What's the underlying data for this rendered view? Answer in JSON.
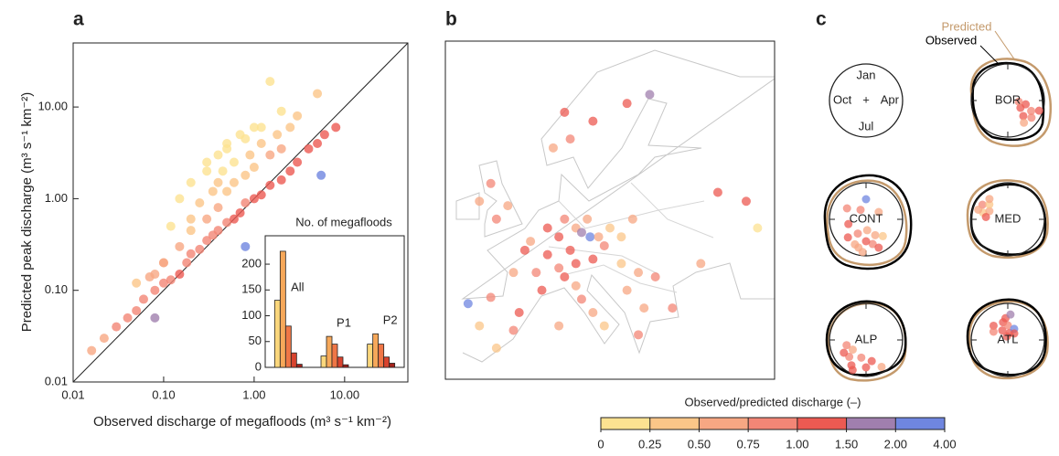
{
  "panel_labels": [
    "a",
    "b",
    "c"
  ],
  "chart_data": [
    {
      "type": "scatter",
      "x_label": "Observed discharge of megafloods (m³ s⁻¹ km⁻²)",
      "y_label": "Predicted peak discharge (m³ s⁻¹ km⁻²)",
      "log_x": true,
      "log_y": true,
      "diagonal": true,
      "xlim": [
        0.01,
        50
      ],
      "ylim": [
        0.01,
        50
      ],
      "xticks": [
        {
          "value": 0.01,
          "label": "0.01"
        },
        {
          "value": 0.1,
          "label": "0.10"
        },
        {
          "value": 1,
          "label": "1.00"
        },
        {
          "value": 10,
          "label": "10.00"
        }
      ],
      "yticks": [
        {
          "value": 0.01,
          "label": "0.01"
        },
        {
          "value": 0.1,
          "label": "0.10"
        },
        {
          "value": 1,
          "label": "1.00"
        },
        {
          "value": 10,
          "label": "10.00"
        }
      ],
      "x": [
        0.016,
        0.022,
        0.03,
        0.04,
        0.05,
        0.06,
        0.08,
        0.1,
        0.12,
        0.15,
        0.18,
        0.2,
        0.25,
        0.3,
        0.35,
        0.4,
        0.5,
        0.6,
        0.7,
        0.8,
        1.0,
        1.2,
        1.5,
        2.0,
        2.5,
        3.0,
        4.0,
        5.0,
        6.0,
        8.0,
        0.08,
        0.1,
        0.15,
        0.2,
        0.3,
        0.4,
        0.5,
        0.6,
        0.8,
        1.0,
        1.5,
        2.0,
        0.15,
        0.2,
        0.3,
        0.4,
        0.5,
        0.7,
        1.0,
        1.5,
        2.0,
        3.0,
        0.05,
        0.07,
        0.1,
        0.12,
        0.25,
        0.35,
        0.45,
        0.6,
        0.9,
        1.2,
        1.8,
        2.5,
        0.3,
        0.5,
        0.8,
        1.2,
        5.0,
        5.5,
        0.8,
        0.08,
        0.4,
        0.2
      ],
      "y": [
        0.022,
        0.03,
        0.04,
        0.05,
        0.06,
        0.08,
        0.1,
        0.12,
        0.13,
        0.15,
        0.2,
        0.25,
        0.28,
        0.35,
        0.4,
        0.45,
        0.55,
        0.6,
        0.7,
        0.9,
        1.0,
        1.1,
        1.4,
        1.6,
        2.0,
        2.5,
        3.5,
        4.0,
        5.0,
        6.0,
        0.15,
        0.2,
        0.3,
        0.45,
        0.6,
        0.8,
        1.2,
        1.5,
        1.8,
        2.2,
        3.0,
        3.5,
        1.0,
        1.5,
        2.5,
        3.0,
        4.0,
        5.0,
        6.0,
        19.0,
        9.0,
        8.0,
        0.12,
        0.14,
        0.2,
        0.5,
        0.9,
        1.2,
        2.0,
        2.5,
        3.0,
        4.0,
        5.0,
        6.0,
        2.0,
        3.5,
        4.5,
        6.0,
        14.0,
        1.8,
        0.3,
        0.05,
        1.5,
        0.6
      ]
    },
    {
      "type": "bar",
      "title": "No. of megafloods",
      "categories": [
        "All",
        "P1",
        "P2"
      ],
      "series": [
        {
          "color": "#fbd77c",
          "values": [
            130,
            22,
            45
          ]
        },
        {
          "color": "#f6a85a",
          "values": [
            225,
            60,
            65
          ]
        },
        {
          "color": "#ef7646",
          "values": [
            80,
            45,
            45
          ]
        },
        {
          "color": "#d8432e",
          "values": [
            28,
            20,
            20
          ]
        },
        {
          "color": "#a3231c",
          "values": [
            6,
            5,
            8
          ]
        }
      ],
      "ylim": [
        0,
        255
      ],
      "yticks": [
        0,
        50,
        100,
        150,
        200
      ]
    },
    {
      "type": "map",
      "xlim": [
        -12,
        46
      ],
      "ylim": [
        34,
        72
      ],
      "lon": [
        -8,
        -4,
        -6,
        -3,
        0,
        1,
        2,
        4,
        5,
        0,
        3,
        6,
        -3,
        -1,
        -4,
        -6,
        6,
        8,
        9,
        11,
        13,
        10,
        12,
        13.5,
        15,
        17,
        19,
        21,
        16,
        11,
        14,
        8,
        9,
        11,
        12,
        14,
        16,
        8,
        19,
        22,
        25,
        20,
        23,
        22,
        10,
        14,
        20,
        24,
        7,
        9,
        36,
        41,
        43,
        28,
        33
      ],
      "lat": [
        42.5,
        43.2,
        40,
        37.5,
        39.5,
        41.5,
        48.5,
        46,
        44,
        46,
        49.5,
        48,
        52,
        53.5,
        56,
        54,
        51,
        50,
        52,
        51,
        52,
        48.5,
        50.5,
        50,
        50,
        51,
        50,
        52,
        49,
        47,
        47.5,
        46.5,
        45.5,
        44.5,
        43,
        41.5,
        40,
        40,
        47,
        46,
        45.5,
        44,
        42,
        39,
        61,
        63,
        65,
        66,
        60,
        64,
        55,
        54,
        51,
        42,
        47
      ],
      "ratio": [
        2.5,
        0.8,
        0.4,
        0.3,
        0.9,
        1.1,
        1.2,
        0.9,
        1.1,
        0.7,
        0.6,
        1.0,
        0.8,
        0.6,
        0.9,
        0.7,
        1.2,
        1.1,
        0.9,
        0.5,
        0.6,
        1.3,
        1.6,
        2.2,
        0.7,
        0.4,
        0.3,
        0.5,
        0.8,
        1.2,
        1.0,
        0.9,
        1.1,
        0.6,
        0.8,
        0.7,
        0.3,
        0.5,
        0.4,
        0.6,
        0.9,
        0.5,
        0.7,
        0.8,
        0.9,
        1.0,
        1.2,
        1.7,
        0.6,
        1.1,
        1.3,
        1.1,
        0.2,
        0.8,
        0.7
      ]
    },
    {
      "type": "polar",
      "series": [
        {
          "name": "Predicted",
          "color": "#c49a6c"
        },
        {
          "name": "Observed",
          "color": "#000000"
        }
      ],
      "month_labels": [
        "Jan",
        "Apr",
        "Jul",
        "Oct"
      ],
      "center_label": "+",
      "regions": [
        {
          "name": "BOR",
          "month": [
            4.4,
            4.8,
            5.0,
            5.2,
            5.5,
            4.6,
            5.8,
            4.2
          ],
          "r": [
            0.5,
            0.7,
            0.4,
            0.8,
            0.6,
            0.9,
            0.75,
            0.3
          ],
          "ratio": [
            1.1,
            0.9,
            1.2,
            0.8,
            1.0,
            1.3,
            0.7,
            0.9
          ]
        },
        {
          "name": "CONT",
          "month": [
            1.0,
            6.0,
            6.5,
            7.0,
            7.5,
            8.0,
            5.5,
            8.5,
            6.8,
            7.2,
            9.5,
            3.0,
            11.0,
            6.2,
            7.8,
            12.0
          ],
          "r": [
            0.55,
            0.5,
            0.7,
            0.6,
            0.8,
            0.45,
            0.65,
            0.7,
            0.3,
            0.9,
            0.5,
            0.4,
            0.6,
            0.85,
            0.75,
            0.3
          ],
          "ratio": [
            2.5,
            0.5,
            0.8,
            1.1,
            0.6,
            0.9,
            0.4,
            1.2,
            0.7,
            0.5,
            1.0,
            0.6,
            0.8,
            1.3,
            0.7,
            0.9
          ]
        },
        {
          "name": "MED",
          "month": [
            10.5,
            10.8,
            11.0,
            11.3,
            10.2,
            11.6,
            10.6
          ],
          "r": [
            0.7,
            0.55,
            0.8,
            0.65,
            0.6,
            0.75,
            0.85
          ],
          "ratio": [
            0.3,
            0.6,
            0.8,
            0.4,
            1.0,
            0.5,
            0.7
          ]
        },
        {
          "name": "ALP",
          "month": [
            6.5,
            7.0,
            7.5,
            8.0,
            8.5,
            9.0,
            6.0,
            7.8,
            8.8,
            9.5
          ],
          "r": [
            0.6,
            0.75,
            0.5,
            0.8,
            0.65,
            0.7,
            0.85,
            0.9,
            0.45,
            0.55
          ],
          "ratio": [
            1.1,
            1.2,
            0.9,
            1.3,
            0.8,
            1.0,
            0.7,
            1.1,
            0.6,
            0.9
          ]
        },
        {
          "name": "ATL",
          "month": [
            12.0,
            12.5,
            1.0,
            1.5,
            11.5,
            2.0,
            12.8,
            0.5,
            1.2,
            11.0,
            2.5
          ],
          "r": [
            0.3,
            0.5,
            0.4,
            0.2,
            0.55,
            0.35,
            0.6,
            0.1,
            0.7,
            0.45,
            0.25
          ],
          "ratio": [
            1.1,
            1.3,
            0.9,
            1.2,
            1.0,
            2.5,
            1.4,
            1.1,
            1.7,
            0.9,
            1.2
          ]
        }
      ]
    },
    {
      "type": "colorbar",
      "label": "Observed/predicted discharge (–)",
      "boundaries": [
        0,
        0.25,
        {
          "value": 0.5,
          "label": "0.50"
        },
        0.75,
        {
          "value": 1,
          "label": "1.00"
        },
        {
          "value": 1.5,
          "label": "1.50"
        },
        {
          "value": 2,
          "label": "2.00"
        },
        {
          "value": 4,
          "label": "4.00"
        }
      ],
      "colors": [
        "#fce291",
        "#fbc688",
        "#f7a783",
        "#f38676",
        "#ec5a52",
        "#a07fae",
        "#6f86e0"
      ]
    }
  ]
}
